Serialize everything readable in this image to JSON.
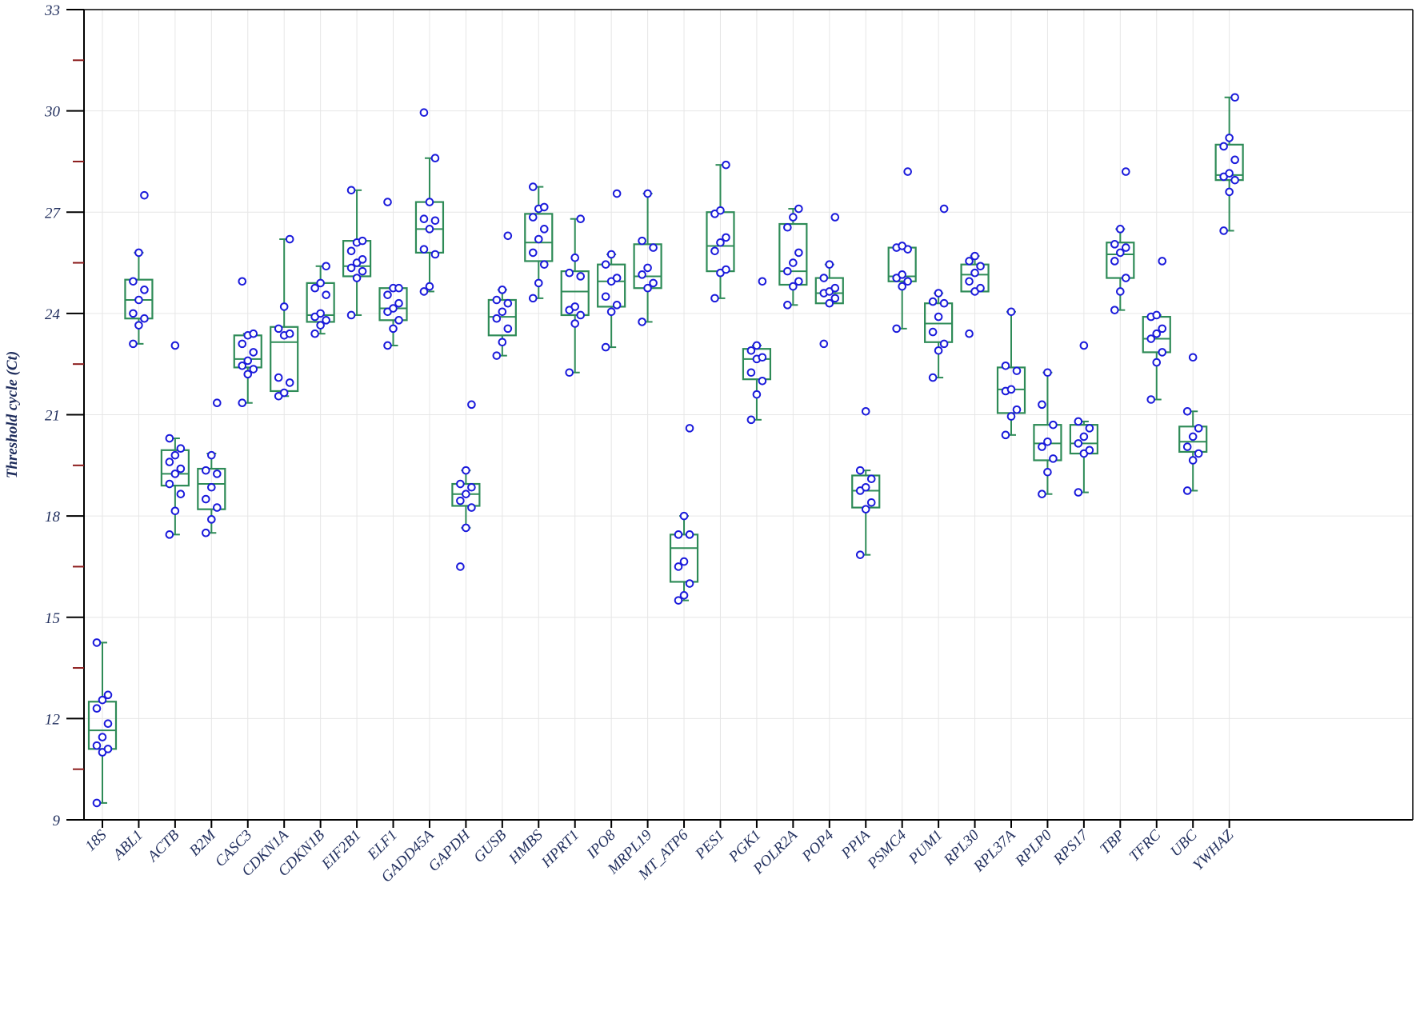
{
  "chart_data": {
    "type": "box",
    "title": "",
    "xlabel": "",
    "ylabel": "Threshold cycle (Ct)",
    "ylim": [
      9,
      33
    ],
    "yticks": [
      9,
      12,
      15,
      18,
      21,
      24,
      27,
      30,
      33
    ],
    "grid": true,
    "colors": {
      "box": "#2e8b57",
      "point_stroke": "#1a1adb",
      "point_fill": "#ffffff",
      "axis": "#000000",
      "minor_tick": "#8b1a1a",
      "grid": "#e6e6e6",
      "text": "#1f2d5c"
    },
    "genes": [
      {
        "name": "18S",
        "q1": 11.1,
        "median": 11.65,
        "q3": 12.5,
        "whisker_low": 9.5,
        "whisker_high": 14.25,
        "points": [
          9.5,
          11.0,
          11.1,
          11.2,
          11.45,
          11.85,
          12.3,
          12.55,
          12.7,
          14.25
        ]
      },
      {
        "name": "ABL1",
        "q1": 23.85,
        "median": 24.4,
        "q3": 25.0,
        "whisker_low": 23.1,
        "whisker_high": 25.8,
        "points": [
          23.1,
          23.65,
          23.85,
          24.0,
          24.4,
          24.7,
          24.95,
          25.8,
          27.5
        ]
      },
      {
        "name": "ACTB",
        "q1": 18.9,
        "median": 19.25,
        "q3": 19.95,
        "whisker_low": 17.45,
        "whisker_high": 20.3,
        "points": [
          17.45,
          18.15,
          18.65,
          18.95,
          19.25,
          19.4,
          19.6,
          19.8,
          20.0,
          20.3,
          23.05
        ]
      },
      {
        "name": "B2M",
        "q1": 18.2,
        "median": 18.95,
        "q3": 19.4,
        "whisker_low": 17.5,
        "whisker_high": 19.85,
        "points": [
          17.5,
          17.9,
          18.25,
          18.5,
          18.85,
          19.25,
          19.35,
          19.8,
          21.35
        ]
      },
      {
        "name": "CASC3",
        "q1": 22.4,
        "median": 22.65,
        "q3": 23.35,
        "whisker_low": 21.35,
        "whisker_high": 23.4,
        "points": [
          21.35,
          22.2,
          22.35,
          22.45,
          22.6,
          22.85,
          23.1,
          23.35,
          23.4,
          24.95
        ]
      },
      {
        "name": "CDKN1A",
        "q1": 21.7,
        "median": 23.15,
        "q3": 23.6,
        "whisker_low": 21.55,
        "whisker_high": 26.2,
        "points": [
          21.55,
          21.65,
          21.95,
          22.1,
          23.35,
          23.4,
          23.55,
          24.2,
          26.2
        ]
      },
      {
        "name": "CDKN1B",
        "q1": 23.75,
        "median": 23.95,
        "q3": 24.9,
        "whisker_low": 23.4,
        "whisker_high": 25.4,
        "points": [
          23.4,
          23.65,
          23.8,
          23.9,
          24.0,
          24.55,
          24.75,
          24.9,
          25.4
        ]
      },
      {
        "name": "EIF2B1",
        "q1": 25.1,
        "median": 25.4,
        "q3": 26.15,
        "whisker_low": 23.95,
        "whisker_high": 27.65,
        "points": [
          23.95,
          25.05,
          25.25,
          25.35,
          25.5,
          25.6,
          25.85,
          26.1,
          26.15,
          27.65
        ]
      },
      {
        "name": "ELF1",
        "q1": 23.8,
        "median": 24.15,
        "q3": 24.75,
        "whisker_low": 23.05,
        "whisker_high": 24.75,
        "points": [
          23.05,
          23.55,
          23.8,
          24.05,
          24.15,
          24.3,
          24.55,
          24.75,
          24.75,
          27.3
        ]
      },
      {
        "name": "GADD45A",
        "q1": 25.8,
        "median": 26.5,
        "q3": 27.3,
        "whisker_low": 24.65,
        "whisker_high": 28.6,
        "points": [
          24.65,
          24.8,
          25.75,
          25.9,
          26.5,
          26.75,
          26.8,
          27.3,
          28.6,
          29.95
        ]
      },
      {
        "name": "GAPDH",
        "q1": 18.3,
        "median": 18.65,
        "q3": 18.95,
        "whisker_low": 17.65,
        "whisker_high": 19.35,
        "points": [
          16.5,
          17.65,
          18.25,
          18.45,
          18.65,
          18.85,
          18.95,
          19.35,
          21.3
        ]
      },
      {
        "name": "GUSB",
        "q1": 23.35,
        "median": 23.9,
        "q3": 24.4,
        "whisker_low": 22.75,
        "whisker_high": 24.7,
        "points": [
          22.75,
          23.15,
          23.55,
          23.85,
          24.05,
          24.3,
          24.4,
          24.7,
          26.3
        ]
      },
      {
        "name": "HMBS",
        "q1": 25.55,
        "median": 26.1,
        "q3": 26.95,
        "whisker_low": 24.45,
        "whisker_high": 27.75,
        "points": [
          24.45,
          24.9,
          25.45,
          25.8,
          26.2,
          26.5,
          26.85,
          27.1,
          27.15,
          27.75
        ]
      },
      {
        "name": "HPRT1",
        "q1": 23.95,
        "median": 24.65,
        "q3": 25.25,
        "whisker_low": 22.25,
        "whisker_high": 26.8,
        "points": [
          22.25,
          23.7,
          23.95,
          24.1,
          24.2,
          25.1,
          25.2,
          25.65,
          26.8
        ]
      },
      {
        "name": "IPO8",
        "q1": 24.2,
        "median": 24.95,
        "q3": 25.45,
        "whisker_low": 23.0,
        "whisker_high": 25.75,
        "points": [
          23.0,
          24.05,
          24.25,
          24.5,
          24.95,
          25.05,
          25.45,
          25.75,
          27.55
        ]
      },
      {
        "name": "MRPL19",
        "q1": 24.75,
        "median": 25.1,
        "q3": 26.05,
        "whisker_low": 23.75,
        "whisker_high": 27.55,
        "points": [
          23.75,
          24.75,
          24.9,
          25.15,
          25.35,
          25.95,
          26.15,
          27.55
        ]
      },
      {
        "name": "MT_ATP6",
        "q1": 16.05,
        "median": 17.05,
        "q3": 17.45,
        "whisker_low": 15.5,
        "whisker_high": 18.0,
        "points": [
          15.5,
          15.65,
          16.0,
          16.5,
          16.65,
          17.45,
          17.45,
          18.0,
          20.6
        ]
      },
      {
        "name": "PES1",
        "q1": 25.25,
        "median": 26.0,
        "q3": 27.0,
        "whisker_low": 24.45,
        "whisker_high": 28.4,
        "points": [
          24.45,
          25.2,
          25.3,
          25.85,
          26.1,
          26.25,
          26.95,
          27.05,
          28.4
        ]
      },
      {
        "name": "PGK1",
        "q1": 22.05,
        "median": 22.65,
        "q3": 22.95,
        "whisker_low": 20.85,
        "whisker_high": 23.05,
        "points": [
          20.85,
          21.6,
          22.0,
          22.25,
          22.65,
          22.7,
          22.9,
          23.05,
          24.95
        ]
      },
      {
        "name": "POLR2A",
        "q1": 24.85,
        "median": 25.25,
        "q3": 26.65,
        "whisker_low": 24.25,
        "whisker_high": 27.1,
        "points": [
          24.25,
          24.8,
          24.95,
          25.25,
          25.5,
          25.8,
          26.55,
          26.85,
          27.1
        ]
      },
      {
        "name": "POP4",
        "q1": 24.3,
        "median": 24.6,
        "q3": 25.05,
        "whisker_low": 24.3,
        "whisker_high": 25.45,
        "points": [
          23.1,
          24.3,
          24.45,
          24.6,
          24.65,
          24.75,
          25.05,
          25.45,
          26.85
        ]
      },
      {
        "name": "PPIA",
        "q1": 18.25,
        "median": 18.75,
        "q3": 19.2,
        "whisker_low": 16.85,
        "whisker_high": 19.35,
        "points": [
          16.85,
          18.2,
          18.4,
          18.75,
          18.85,
          19.1,
          19.35,
          21.1
        ]
      },
      {
        "name": "PSMC4",
        "q1": 24.95,
        "median": 25.1,
        "q3": 25.95,
        "whisker_low": 23.55,
        "whisker_high": 26.0,
        "points": [
          23.55,
          24.8,
          24.95,
          25.05,
          25.15,
          25.9,
          25.95,
          26.0,
          28.2
        ]
      },
      {
        "name": "PUM1",
        "q1": 23.15,
        "median": 23.7,
        "q3": 24.3,
        "whisker_low": 22.1,
        "whisker_high": 24.6,
        "points": [
          22.1,
          22.9,
          23.1,
          23.45,
          23.9,
          24.3,
          24.35,
          24.6,
          27.1
        ]
      },
      {
        "name": "RPL30",
        "q1": 24.65,
        "median": 25.15,
        "q3": 25.45,
        "whisker_low": 24.65,
        "whisker_high": 25.7,
        "points": [
          23.4,
          24.65,
          24.75,
          24.95,
          25.2,
          25.4,
          25.55,
          25.7
        ]
      },
      {
        "name": "RPL37A",
        "q1": 21.05,
        "median": 21.75,
        "q3": 22.4,
        "whisker_low": 20.4,
        "whisker_high": 24.05,
        "points": [
          20.4,
          20.95,
          21.15,
          21.7,
          21.75,
          22.3,
          22.45,
          24.05
        ]
      },
      {
        "name": "RPLP0",
        "q1": 19.65,
        "median": 20.15,
        "q3": 20.7,
        "whisker_low": 18.65,
        "whisker_high": 22.25,
        "points": [
          18.65,
          19.3,
          19.7,
          20.05,
          20.2,
          20.7,
          21.3,
          22.25
        ]
      },
      {
        "name": "RPS17",
        "q1": 19.85,
        "median": 20.15,
        "q3": 20.7,
        "whisker_low": 18.7,
        "whisker_high": 20.8,
        "points": [
          18.7,
          19.85,
          19.95,
          20.15,
          20.35,
          20.6,
          20.8,
          23.05
        ]
      },
      {
        "name": "TBP",
        "q1": 25.05,
        "median": 25.75,
        "q3": 26.1,
        "whisker_low": 24.1,
        "whisker_high": 26.5,
        "points": [
          24.1,
          24.65,
          25.05,
          25.55,
          25.8,
          25.95,
          26.05,
          26.5,
          28.2
        ]
      },
      {
        "name": "TFRC",
        "q1": 22.85,
        "median": 23.25,
        "q3": 23.9,
        "whisker_low": 21.45,
        "whisker_high": 23.95,
        "points": [
          21.45,
          22.55,
          22.85,
          23.25,
          23.4,
          23.55,
          23.9,
          23.95,
          25.55
        ]
      },
      {
        "name": "UBC",
        "q1": 19.9,
        "median": 20.2,
        "q3": 20.65,
        "whisker_low": 18.75,
        "whisker_high": 21.1,
        "points": [
          18.75,
          19.65,
          19.85,
          20.05,
          20.35,
          20.6,
          21.1,
          22.7
        ]
      },
      {
        "name": "YWHAZ",
        "q1": 27.95,
        "median": 28.1,
        "q3": 29.0,
        "whisker_low": 26.45,
        "whisker_high": 30.4,
        "points": [
          26.45,
          27.6,
          27.95,
          28.05,
          28.15,
          28.55,
          28.95,
          29.2,
          30.4
        ]
      }
    ]
  }
}
